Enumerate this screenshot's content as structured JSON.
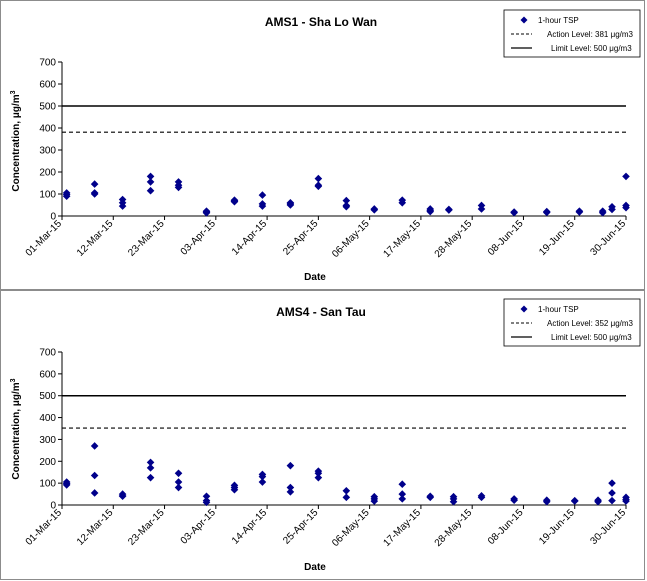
{
  "colors": {
    "marker": "#00008B",
    "line": "#000000",
    "border": "#8c8c8c"
  },
  "chart_data": [
    {
      "type": "scatter",
      "title": "AMS1 - Sha Lo Wan",
      "xlabel": "Date",
      "ylabel": "Concentration, μg/m",
      "ylabel_sup": "3",
      "ylim": [
        0,
        700
      ],
      "yticks": [
        "0",
        "100",
        "200",
        "300",
        "400",
        "500",
        "600",
        "700"
      ],
      "xticks": [
        "01-Mar-15",
        "12-Mar-15",
        "23-Mar-15",
        "03-Apr-15",
        "14-Apr-15",
        "25-Apr-15",
        "06-May-15",
        "17-May-15",
        "28-May-15",
        "08-Jun-15",
        "19-Jun-15",
        "30-Jun-15"
      ],
      "grid": false,
      "legend_position": "top-right",
      "legend": [
        "1-hour TSP",
        "Action Level: 381 μg/m3",
        "Limit Level: 500 μg/m3"
      ],
      "action_level": 381,
      "limit_level": 500,
      "series": [
        {
          "name": "1-hour TSP",
          "points": [
            [
              "2015-03-02",
              105
            ],
            [
              "2015-03-02",
              98
            ],
            [
              "2015-03-02",
              90
            ],
            [
              "2015-03-08",
              145
            ],
            [
              "2015-03-08",
              105
            ],
            [
              "2015-03-08",
              100
            ],
            [
              "2015-03-14",
              75
            ],
            [
              "2015-03-14",
              60
            ],
            [
              "2015-03-14",
              45
            ],
            [
              "2015-03-20",
              180
            ],
            [
              "2015-03-20",
              155
            ],
            [
              "2015-03-20",
              115
            ],
            [
              "2015-03-26",
              155
            ],
            [
              "2015-03-26",
              140
            ],
            [
              "2015-03-26",
              130
            ],
            [
              "2015-04-01",
              22
            ],
            [
              "2015-04-01",
              18
            ],
            [
              "2015-04-01",
              14
            ],
            [
              "2015-04-07",
              72
            ],
            [
              "2015-04-07",
              68
            ],
            [
              "2015-04-07",
              65
            ],
            [
              "2015-04-13",
              95
            ],
            [
              "2015-04-13",
              55
            ],
            [
              "2015-04-13",
              45
            ],
            [
              "2015-04-19",
              60
            ],
            [
              "2015-04-19",
              55
            ],
            [
              "2015-04-19",
              50
            ],
            [
              "2015-04-25",
              170
            ],
            [
              "2015-04-25",
              140
            ],
            [
              "2015-04-25",
              135
            ],
            [
              "2015-05-01",
              70
            ],
            [
              "2015-05-01",
              48
            ],
            [
              "2015-05-01",
              42
            ],
            [
              "2015-05-07",
              32
            ],
            [
              "2015-05-07",
              28
            ],
            [
              "2015-05-13",
              72
            ],
            [
              "2015-05-13",
              60
            ],
            [
              "2015-05-19",
              32
            ],
            [
              "2015-05-19",
              25
            ],
            [
              "2015-05-19",
              20
            ],
            [
              "2015-05-23",
              30
            ],
            [
              "2015-05-23",
              27
            ],
            [
              "2015-05-30",
              48
            ],
            [
              "2015-05-30",
              32
            ],
            [
              "2015-06-06",
              18
            ],
            [
              "2015-06-06",
              15
            ],
            [
              "2015-06-13",
              20
            ],
            [
              "2015-06-13",
              16
            ],
            [
              "2015-06-20",
              22
            ],
            [
              "2015-06-20",
              18
            ],
            [
              "2015-06-25",
              22
            ],
            [
              "2015-06-25",
              15
            ],
            [
              "2015-06-27",
              42
            ],
            [
              "2015-06-27",
              30
            ],
            [
              "2015-06-30",
              180
            ],
            [
              "2015-06-30",
              48
            ],
            [
              "2015-06-30",
              38
            ]
          ]
        }
      ]
    },
    {
      "type": "scatter",
      "title": "AMS4 - San Tau",
      "xlabel": "Date",
      "ylabel": "Concentration, μg/m",
      "ylabel_sup": "3",
      "ylim": [
        0,
        700
      ],
      "yticks": [
        "0",
        "100",
        "200",
        "300",
        "400",
        "500",
        "600",
        "700"
      ],
      "xticks": [
        "01-Mar-15",
        "12-Mar-15",
        "23-Mar-15",
        "03-Apr-15",
        "14-Apr-15",
        "25-Apr-15",
        "06-May-15",
        "17-May-15",
        "28-May-15",
        "08-Jun-15",
        "19-Jun-15",
        "30-Jun-15"
      ],
      "grid": false,
      "legend_position": "top-right",
      "legend": [
        "1-hour TSP",
        "Action Level: 352 μg/m3",
        "Limit Level: 500 μg/m3"
      ],
      "action_level": 352,
      "limit_level": 500,
      "series": [
        {
          "name": "1-hour TSP",
          "points": [
            [
              "2015-03-02",
              105
            ],
            [
              "2015-03-02",
              98
            ],
            [
              "2015-03-02",
              92
            ],
            [
              "2015-03-08",
              270
            ],
            [
              "2015-03-08",
              135
            ],
            [
              "2015-03-08",
              55
            ],
            [
              "2015-03-14",
              50
            ],
            [
              "2015-03-14",
              42
            ],
            [
              "2015-03-14",
              40
            ],
            [
              "2015-03-20",
              195
            ],
            [
              "2015-03-20",
              170
            ],
            [
              "2015-03-20",
              125
            ],
            [
              "2015-03-26",
              145
            ],
            [
              "2015-03-26",
              105
            ],
            [
              "2015-03-26",
              80
            ],
            [
              "2015-04-01",
              40
            ],
            [
              "2015-04-01",
              20
            ],
            [
              "2015-04-01",
              12
            ],
            [
              "2015-04-07",
              90
            ],
            [
              "2015-04-07",
              80
            ],
            [
              "2015-04-07",
              70
            ],
            [
              "2015-04-13",
              140
            ],
            [
              "2015-04-13",
              130
            ],
            [
              "2015-04-13",
              105
            ],
            [
              "2015-04-19",
              180
            ],
            [
              "2015-04-19",
              80
            ],
            [
              "2015-04-19",
              60
            ],
            [
              "2015-04-25",
              155
            ],
            [
              "2015-04-25",
              145
            ],
            [
              "2015-04-25",
              125
            ],
            [
              "2015-05-01",
              65
            ],
            [
              "2015-05-01",
              35
            ],
            [
              "2015-05-07",
              38
            ],
            [
              "2015-05-07",
              28
            ],
            [
              "2015-05-07",
              18
            ],
            [
              "2015-05-13",
              95
            ],
            [
              "2015-05-13",
              50
            ],
            [
              "2015-05-13",
              28
            ],
            [
              "2015-05-19",
              40
            ],
            [
              "2015-05-19",
              35
            ],
            [
              "2015-05-24",
              38
            ],
            [
              "2015-05-24",
              28
            ],
            [
              "2015-05-24",
              15
            ],
            [
              "2015-05-30",
              42
            ],
            [
              "2015-05-30",
              35
            ],
            [
              "2015-06-06",
              28
            ],
            [
              "2015-06-06",
              22
            ],
            [
              "2015-06-13",
              22
            ],
            [
              "2015-06-13",
              15
            ],
            [
              "2015-06-19",
              20
            ],
            [
              "2015-06-19",
              18
            ],
            [
              "2015-06-24",
              22
            ],
            [
              "2015-06-24",
              15
            ],
            [
              "2015-06-27",
              100
            ],
            [
              "2015-06-27",
              55
            ],
            [
              "2015-06-27",
              20
            ],
            [
              "2015-06-30",
              35
            ],
            [
              "2015-06-30",
              25
            ],
            [
              "2015-06-30",
              18
            ]
          ]
        }
      ]
    }
  ]
}
